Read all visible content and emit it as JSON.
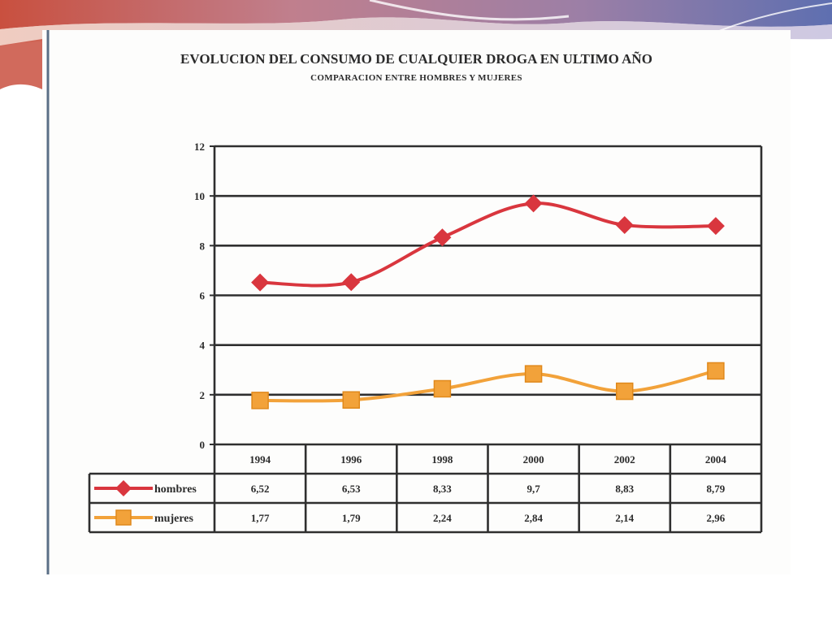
{
  "colors": {
    "hombres": "#d9363e",
    "mujeres": "#f2a23a",
    "grid": "#2f2f2f"
  },
  "chart_data": {
    "type": "line",
    "title": "EVOLUCION DEL CONSUMO DE CUALQUIER DROGA EN ULTIMO AÑO",
    "subtitle": "COMPARACION ENTRE HOMBRES Y MUJERES",
    "categories": [
      "1994",
      "1996",
      "1998",
      "2000",
      "2002",
      "2004"
    ],
    "ylim": [
      0,
      12
    ],
    "yticks": [
      0,
      2,
      4,
      6,
      8,
      10,
      12
    ],
    "grid": true,
    "legend": "data-table",
    "series": [
      {
        "name": "hombres",
        "values": [
          6.52,
          6.53,
          8.33,
          9.7,
          8.83,
          8.79
        ],
        "labels": [
          "6,52",
          "6,53",
          "8,33",
          "9,7",
          "8,83",
          "8,79"
        ],
        "marker": "diamond"
      },
      {
        "name": "mujeres",
        "values": [
          1.77,
          1.79,
          2.24,
          2.84,
          2.14,
          2.96
        ],
        "labels": [
          "1,77",
          "1,79",
          "2,24",
          "2,84",
          "2,14",
          "2,96"
        ],
        "marker": "square"
      }
    ]
  }
}
